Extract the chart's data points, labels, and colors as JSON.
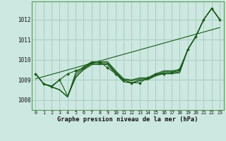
{
  "xlabel": "Graphe pression niveau de la mer (hPa)",
  "background_color": "#cce8e0",
  "grid_color": "#aaccc4",
  "line_color": "#1a5c1a",
  "ylim": [
    1007.5,
    1012.9
  ],
  "yticks": [
    1008,
    1009,
    1010,
    1011,
    1012
  ],
  "xticks": [
    0,
    1,
    2,
    3,
    4,
    5,
    6,
    7,
    8,
    9,
    10,
    11,
    12,
    13,
    14,
    15,
    16,
    17,
    18,
    19,
    20,
    21,
    22,
    23
  ],
  "series": [
    [
      1009.3,
      1008.8,
      1008.7,
      1009.0,
      1008.2,
      1009.1,
      1009.55,
      1009.8,
      1009.75,
      1009.8,
      1009.35,
      1008.9,
      1008.85,
      1009.0,
      1009.0,
      1009.2,
      1009.3,
      1009.3,
      1009.35,
      1010.5,
      1011.15,
      1012.0,
      1012.55,
      1012.0
    ],
    [
      1009.3,
      1008.8,
      1008.65,
      1008.5,
      1008.15,
      1009.25,
      1009.6,
      1009.85,
      1009.85,
      1009.85,
      1009.4,
      1009.0,
      1008.95,
      1009.05,
      1009.05,
      1009.25,
      1009.4,
      1009.4,
      1009.45,
      1010.5,
      1011.15,
      1012.0,
      1012.55,
      1012.0
    ],
    [
      1009.3,
      1008.8,
      1008.65,
      1008.5,
      1008.15,
      1009.35,
      1009.65,
      1009.9,
      1009.9,
      1009.9,
      1009.45,
      1009.05,
      1009.0,
      1009.1,
      1009.1,
      1009.3,
      1009.45,
      1009.45,
      1009.5,
      1010.5,
      1011.15,
      1012.0,
      1012.55,
      1012.0
    ],
    [
      1009.3,
      1008.8,
      1008.65,
      1008.5,
      1008.15,
      1009.15,
      1009.5,
      1009.75,
      1009.8,
      1009.75,
      1009.3,
      1008.9,
      1008.85,
      1008.95,
      1009.05,
      1009.2,
      1009.35,
      1009.35,
      1009.4,
      1010.5,
      1011.15,
      1012.0,
      1012.55,
      1012.0
    ]
  ],
  "main_series": [
    1009.3,
    1008.8,
    1008.65,
    1009.0,
    1009.3,
    1009.45,
    1009.6,
    1009.85,
    1009.9,
    1009.6,
    1009.3,
    1009.0,
    1008.85,
    1008.85,
    1009.1,
    1009.3,
    1009.3,
    1009.35,
    1009.55,
    1010.5,
    1011.15,
    1012.0,
    1012.55,
    1012.0
  ],
  "trend_y": [
    1009.05,
    1011.6
  ]
}
